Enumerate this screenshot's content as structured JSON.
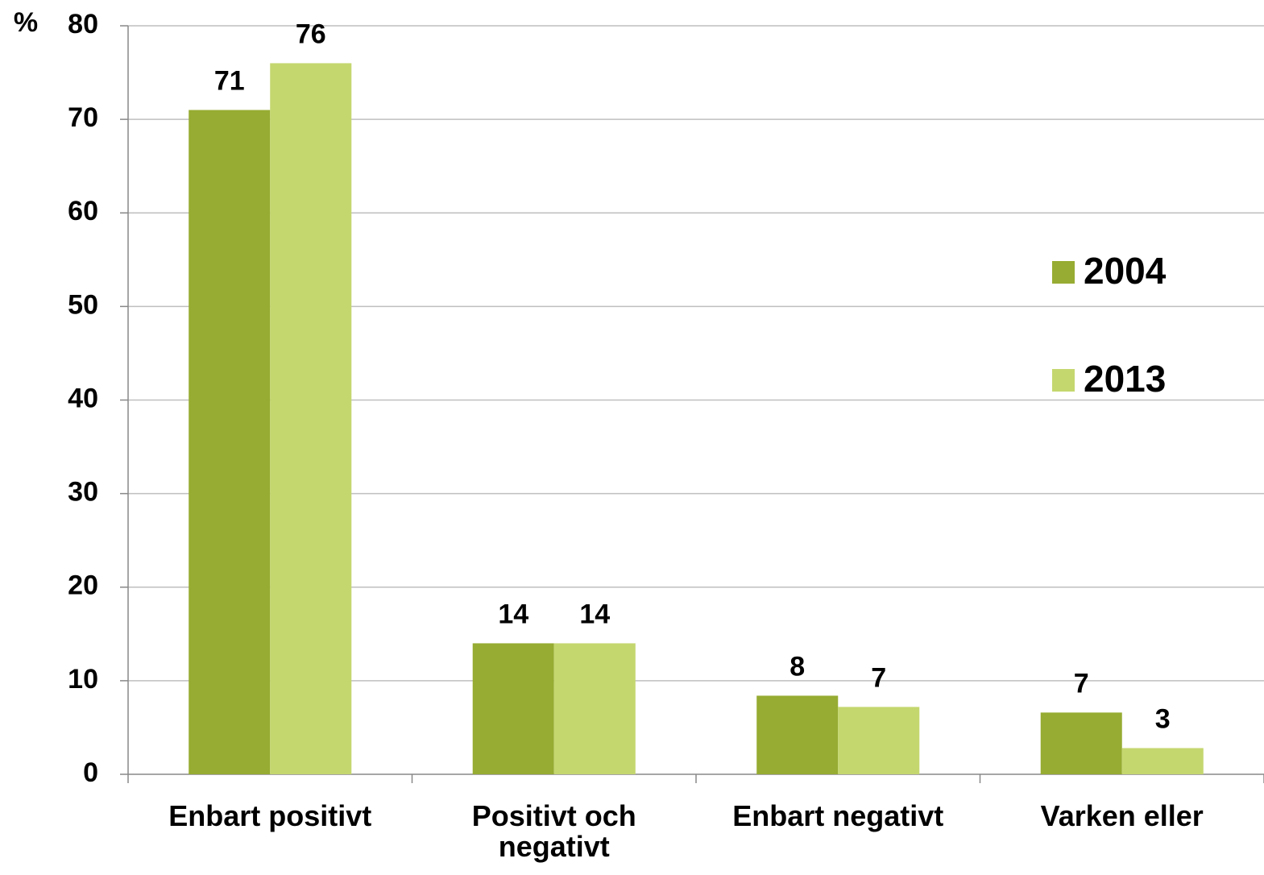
{
  "chart_data": {
    "type": "bar",
    "y_label": "%",
    "categories": [
      "Enbart positivt",
      "Positivt och negativt",
      "Enbart negativt",
      "Varken eller"
    ],
    "series": [
      {
        "name": "2004",
        "color": "#96ac32",
        "values": [
          71,
          14,
          8.4,
          6.6
        ],
        "value_labels": [
          "71",
          "14",
          "8",
          "7"
        ]
      },
      {
        "name": "2013",
        "color": "#c4d76f",
        "values": [
          76,
          14,
          7.2,
          2.8
        ],
        "value_labels": [
          "76",
          "14",
          "7",
          "3"
        ]
      }
    ],
    "ylim": [
      0,
      80
    ],
    "yticks": [
      0,
      10,
      20,
      30,
      40,
      50,
      60,
      70,
      80
    ],
    "grid": true,
    "legend": "right"
  }
}
